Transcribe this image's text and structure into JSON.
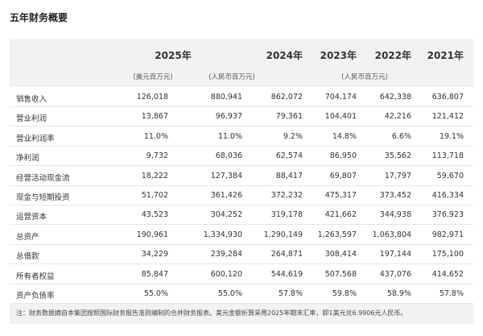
{
  "header": {
    "title": "五年财务概要"
  },
  "table": {
    "years": [
      "2025年",
      "2024年",
      "2023年",
      "2022年",
      "2021年"
    ],
    "units": [
      "(美元百万元)",
      "(人民币百万元)",
      "(人民币百万元)"
    ],
    "rows": [
      [
        "销售收入",
        "126,018",
        "880,941",
        "862,072",
        "704,174",
        "642,338",
        "636,807"
      ],
      [
        "营业利润",
        "13,867",
        "96,937",
        "79,361",
        "104,401",
        "42,216",
        "121,412"
      ],
      [
        "营业利润率",
        "11.0%",
        "11.0%",
        "9.2%",
        "14.8%",
        "6.6%",
        "19.1%"
      ],
      [
        "净利润",
        "9,732",
        "68,036",
        "62,574",
        "86,950",
        "35,562",
        "113,718"
      ],
      [
        "经营活动现金流",
        "18,222",
        "127,384",
        "88,417",
        "69,807",
        "17,797",
        "59,670"
      ],
      [
        "现金与短期投资",
        "51,702",
        "361,426",
        "372,232",
        "475,317",
        "373,452",
        "416,334"
      ],
      [
        "运营资本",
        "43,523",
        "304,252",
        "319,178",
        "421,662",
        "344,938",
        "376,923"
      ],
      [
        "总资产",
        "190,961",
        "1,334,930",
        "1,290,149",
        "1,263,597",
        "1,063,804",
        "982,971"
      ],
      [
        "总借款",
        "34,229",
        "239,284",
        "264,871",
        "308,414",
        "197,144",
        "175,100"
      ],
      [
        "所有者权益",
        "85,847",
        "600,120",
        "544,619",
        "507,568",
        "437,076",
        "414,652"
      ],
      [
        "资产负债率",
        "55.0%",
        "55.0%",
        "57.8%",
        "59.8%",
        "58.9%",
        "57.8%"
      ]
    ],
    "note": "注：财务数据摘自本集团按照国际财务报告准则编制的合并财务报表。美元金额折算采用2025年期末汇率，即1美元兑6.9906元人民币。"
  }
}
